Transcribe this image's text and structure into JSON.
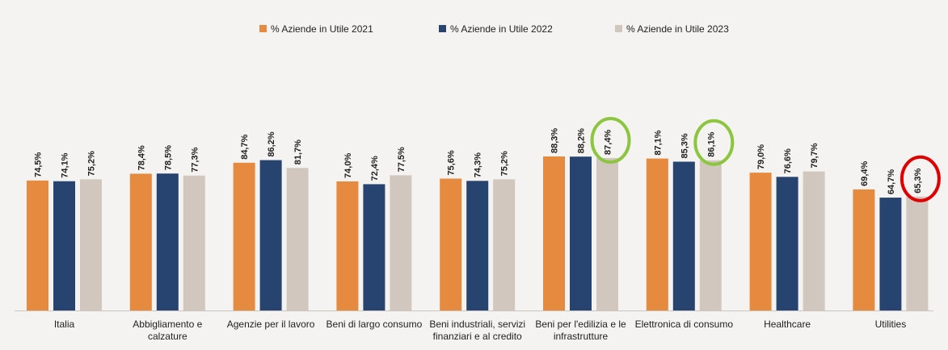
{
  "colors": {
    "background": "#f4f3f1",
    "axis": "#c9c6c2",
    "text": "#1f1f1f",
    "highlight_good": "#8cc63f",
    "highlight_bad": "#e00000"
  },
  "chart_data": {
    "type": "bar",
    "title": "",
    "xlabel": "",
    "ylabel": "",
    "legend_position": "top-center",
    "grid": false,
    "categories": [
      "Italia",
      "Abbigliamento e calzature",
      "Agenzie per il lavoro",
      "Beni di largo consumo",
      "Beni industriali, servizi finanziari e al credito",
      "Beni per l'edilizia e le infrastrutture",
      "Elettronica di consumo",
      "Healthcare",
      "Utilities"
    ],
    "category_lines": [
      [
        "Italia"
      ],
      [
        "Abbigliamento e",
        "calzature"
      ],
      [
        "Agenzie per il lavoro"
      ],
      [
        "Beni di largo consumo"
      ],
      [
        "Beni industriali, servizi",
        "finanziari e al credito"
      ],
      [
        "Beni per l'edilizia e le",
        "infrastrutture"
      ],
      [
        "Elettronica di consumo"
      ],
      [
        "Healthcare"
      ],
      [
        "Utilities"
      ]
    ],
    "series": [
      {
        "name": "% Aziende in Utile 2021",
        "color": "#e58a3f",
        "values": [
          74.5,
          78.4,
          84.7,
          74.0,
          75.6,
          88.3,
          87.1,
          79.0,
          69.4
        ],
        "labels": [
          "74,5%",
          "78,4%",
          "84,7%",
          "74,0%",
          "75,6%",
          "88,3%",
          "87,1%",
          "79,0%",
          "69,4%"
        ]
      },
      {
        "name": "% Aziende in Utile 2022",
        "color": "#27436f",
        "values": [
          74.1,
          78.5,
          86.2,
          72.4,
          74.3,
          88.2,
          85.3,
          76.6,
          64.7
        ],
        "labels": [
          "74,1%",
          "78,5%",
          "86,2%",
          "72,4%",
          "74,3%",
          "88,2%",
          "85,3%",
          "76,6%",
          "64,7%"
        ]
      },
      {
        "name": "% Aziende in Utile 2023",
        "color": "#d1c7bf",
        "values": [
          75.2,
          77.3,
          81.7,
          77.5,
          75.2,
          87.4,
          86.1,
          79.7,
          65.3
        ],
        "labels": [
          "75,2%",
          "77,3%",
          "81,7%",
          "77,5%",
          "75,2%",
          "87,4%",
          "86,1%",
          "79,7%",
          "65,3%"
        ]
      }
    ],
    "highlights": [
      {
        "category_index": 5,
        "series_index": 2,
        "color": "#8cc63f"
      },
      {
        "category_index": 6,
        "series_index": 2,
        "color": "#8cc63f"
      },
      {
        "category_index": 8,
        "series_index": 2,
        "color": "#e00000"
      }
    ]
  }
}
